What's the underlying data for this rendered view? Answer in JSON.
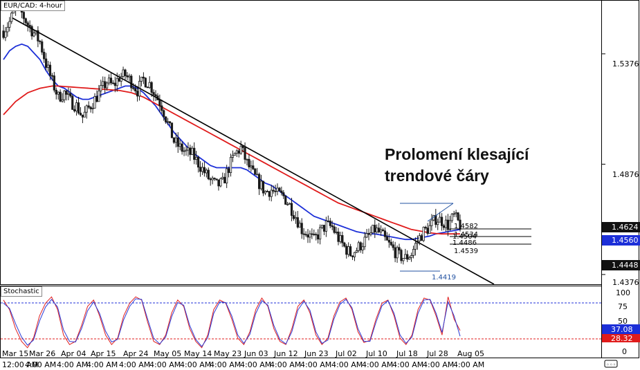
{
  "chart_title": "EUR/CAD: 4-hour",
  "stoch_title": "Stochastic",
  "annotation": [
    "Prolomení klesající",
    "trendové čáry"
  ],
  "colors": {
    "price_bg": "#1a1a1a",
    "ma_blue": "#1c2fd8",
    "ma_red": "#e01b1b",
    "stoch_red": "#e02020",
    "stoch_blue": "#2b3bd6",
    "level_blue": "#2050a0"
  },
  "chart_data": [
    {
      "type": "candlestick",
      "title": "EUR/CAD: 4-hour",
      "x_labels": [
        "Mar 15 12:00 AM",
        "Mar 26 4:00 AM",
        "Apr 04 4:00 AM",
        "Apr 15 4:00 AM",
        "Apr 24 4:00 AM",
        "May 05 4:00 AM",
        "May 14 4:00 AM",
        "May 23 4:00 AM",
        "Jun 03 4:00 AM",
        "Jun 12 4:00 AM",
        "Jun 23 4:00 AM",
        "Jul 02 4:00 AM",
        "Jul 10 4:00 AM",
        "Jul 18 4:00 AM",
        "Jul 28 4:00 AM",
        "Aug 05 4:00 AM"
      ],
      "y_ticks": [
        "1.5376",
        "1.4876",
        "1.4376"
      ],
      "ylim": [
        1.4335,
        1.562
      ],
      "price_tags": [
        {
          "value": "1.4624",
          "style": "dark"
        },
        {
          "value": "1.4560",
          "style": "blue"
        },
        {
          "value": "1.4448",
          "style": "dark"
        }
      ],
      "swing_levels": {
        "high": "1.4652",
        "low": "1.4419",
        "values": [
          1.4652,
          1.4419
        ]
      },
      "fib_labels": [
        "1.4582",
        "1.4534",
        "1.4504",
        "1.4486",
        "1.4539"
      ],
      "close_series": [
        1.548,
        1.552,
        1.5585,
        1.556,
        1.551,
        1.547,
        1.543,
        1.533,
        1.525,
        1.518,
        1.52,
        1.516,
        1.514,
        1.509,
        1.513,
        1.517,
        1.521,
        1.525,
        1.523,
        1.527,
        1.528,
        1.525,
        1.521,
        1.526,
        1.524,
        1.519,
        1.514,
        1.506,
        1.498,
        1.495,
        1.493,
        1.492,
        1.488,
        1.484,
        1.48,
        1.478,
        1.479,
        1.486,
        1.492,
        1.495,
        1.488,
        1.483,
        1.479,
        1.475,
        1.476,
        1.474,
        1.473,
        1.469,
        1.464,
        1.458,
        1.456,
        1.453,
        1.457,
        1.46,
        1.459,
        1.454,
        1.45,
        1.447,
        1.449,
        1.452,
        1.455,
        1.458,
        1.456,
        1.452,
        1.449,
        1.446,
        1.445,
        1.447,
        1.453,
        1.457,
        1.459,
        1.463,
        1.462,
        1.46,
        1.464,
        1.46
      ],
      "moving_averages": [
        {
          "color": "blue",
          "values": [
            1.535,
            1.539,
            1.541,
            1.542,
            1.541,
            1.538,
            1.535,
            1.53,
            1.526,
            1.523,
            1.522,
            1.52,
            1.518,
            1.517,
            1.517,
            1.518,
            1.519,
            1.52,
            1.521,
            1.522,
            1.523,
            1.523,
            1.522,
            1.52,
            1.517,
            1.514,
            1.51,
            1.506,
            1.502,
            1.499,
            1.496,
            1.493,
            1.491,
            1.489,
            1.487,
            1.486,
            1.486,
            1.486,
            1.486,
            1.486,
            1.485,
            1.483,
            1.481,
            1.479,
            1.478,
            1.476,
            1.474,
            1.472,
            1.47,
            1.468,
            1.466,
            1.464,
            1.463,
            1.462,
            1.461,
            1.46,
            1.459,
            1.458,
            1.457,
            1.4565,
            1.456,
            1.456,
            1.4555,
            1.455,
            1.4545,
            1.454,
            1.4535,
            1.4535,
            1.454,
            1.4545,
            1.455,
            1.456,
            1.4565,
            1.457,
            1.4575,
            1.458
          ]
        },
        {
          "color": "red",
          "values": [
            1.51,
            1.513,
            1.516,
            1.518,
            1.52,
            1.521,
            1.522,
            1.5225,
            1.523,
            1.523,
            1.5228,
            1.5226,
            1.5224,
            1.5222,
            1.522,
            1.5218,
            1.5216,
            1.5214,
            1.5212,
            1.521,
            1.5205,
            1.52,
            1.519,
            1.518,
            1.5165,
            1.515,
            1.5135,
            1.512,
            1.5105,
            1.509,
            1.5075,
            1.506,
            1.5045,
            1.503,
            1.5015,
            1.5,
            1.4985,
            1.497,
            1.4955,
            1.494,
            1.4925,
            1.491,
            1.4895,
            1.488,
            1.4865,
            1.485,
            1.4835,
            1.482,
            1.4805,
            1.479,
            1.4775,
            1.476,
            1.4745,
            1.473,
            1.4715,
            1.47,
            1.469,
            1.468,
            1.467,
            1.466,
            1.465,
            1.464,
            1.463,
            1.462,
            1.461,
            1.46,
            1.459,
            1.458,
            1.4575,
            1.457,
            1.4565,
            1.4562,
            1.456,
            1.456,
            1.456,
            1.456
          ]
        }
      ]
    },
    {
      "type": "line",
      "title": "Stochastic",
      "y_ticks": [
        "100",
        "75",
        "50",
        "25",
        "0"
      ],
      "ylim": [
        0,
        100
      ],
      "levels": [
        80,
        20
      ],
      "value_tags": [
        "37.08",
        "28.32"
      ],
      "series": [
        {
          "color": "red",
          "values": [
            85,
            70,
            40,
            20,
            10,
            25,
            60,
            80,
            90,
            70,
            30,
            15,
            20,
            45,
            75,
            85,
            60,
            30,
            15,
            25,
            60,
            80,
            90,
            85,
            50,
            20,
            15,
            30,
            65,
            85,
            75,
            40,
            20,
            10,
            30,
            70,
            85,
            80,
            55,
            25,
            15,
            35,
            70,
            88,
            75,
            40,
            20,
            15,
            40,
            75,
            85,
            65,
            30,
            15,
            25,
            60,
            82,
            88,
            70,
            35,
            18,
            22,
            55,
            80,
            85,
            60,
            25,
            15,
            30,
            70,
            88,
            85,
            60,
            30,
            90,
            55,
            37
          ]
        },
        {
          "color": "blue",
          "values": [
            80,
            72,
            48,
            27,
            14,
            22,
            52,
            74,
            86,
            74,
            38,
            20,
            19,
            40,
            68,
            82,
            64,
            36,
            19,
            23,
            54,
            75,
            87,
            86,
            55,
            25,
            16,
            27,
            59,
            81,
            77,
            45,
            23,
            12,
            26,
            64,
            82,
            81,
            60,
            30,
            17,
            31,
            64,
            84,
            77,
            45,
            23,
            16,
            35,
            69,
            83,
            69,
            35,
            17,
            22,
            55,
            78,
            86,
            73,
            40,
            20,
            20,
            50,
            76,
            84,
            64,
            30,
            17,
            27,
            64,
            85,
            86,
            64,
            34,
            82,
            60,
            28
          ]
        }
      ]
    }
  ]
}
